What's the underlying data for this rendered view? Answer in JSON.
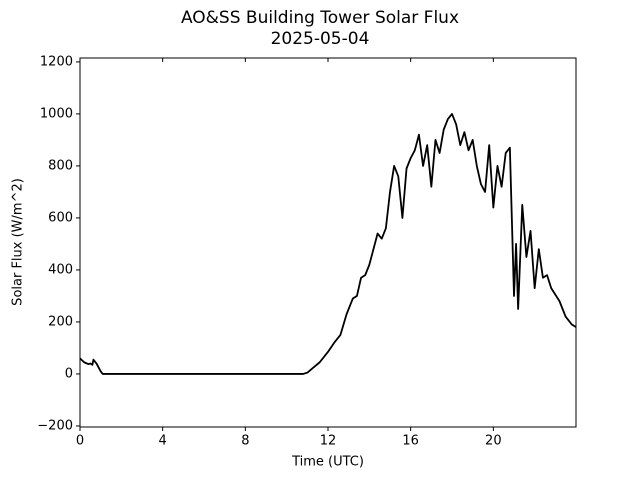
{
  "chart_data": {
    "type": "line",
    "title": "AO&SS Building Tower Solar Flux",
    "subtitle": "2025-05-04",
    "x_label": "Time (UTC)",
    "y_label": "Solar Flux (W/m^2)",
    "xlim": [
      0,
      24
    ],
    "xticks": [
      0,
      4,
      8,
      12,
      16,
      20
    ],
    "ylim": [
      -204,
      1215
    ],
    "yticks": [
      {
        "value": -200,
        "label": "−200"
      },
      0,
      200,
      400,
      600,
      800,
      1000,
      1200
    ],
    "series": [
      {
        "color": "#000000",
        "x": [
          0,
          0.2,
          0.4,
          0.5,
          0.6,
          0.65,
          0.8,
          1.0,
          1.1,
          10.8,
          11.0,
          11.3,
          11.6,
          12.0,
          12.3,
          12.6,
          12.9,
          13.2,
          13.4,
          13.6,
          13.8,
          14.0,
          14.2,
          14.4,
          14.6,
          14.8,
          15.0,
          15.2,
          15.4,
          15.6,
          15.8,
          16.0,
          16.2,
          16.4,
          16.6,
          16.8,
          17.0,
          17.2,
          17.4,
          17.6,
          17.8,
          18.0,
          18.2,
          18.4,
          18.6,
          18.8,
          19.0,
          19.2,
          19.4,
          19.6,
          19.8,
          20.0,
          20.2,
          20.4,
          20.6,
          20.8,
          21.0,
          21.1,
          21.2,
          21.4,
          21.6,
          21.8,
          22.0,
          22.2,
          22.4,
          22.6,
          22.8,
          23.2,
          23.5,
          23.8,
          24
        ],
        "values": [
          60,
          45,
          38,
          40,
          35,
          55,
          40,
          10,
          0,
          0,
          5,
          25,
          45,
          85,
          120,
          150,
          230,
          290,
          300,
          370,
          380,
          420,
          480,
          540,
          520,
          560,
          700,
          800,
          760,
          600,
          790,
          830,
          860,
          920,
          800,
          880,
          720,
          900,
          850,
          940,
          980,
          1000,
          960,
          880,
          930,
          860,
          900,
          800,
          730,
          700,
          880,
          640,
          800,
          720,
          850,
          870,
          300,
          500,
          250,
          650,
          450,
          550,
          330,
          480,
          370,
          380,
          330,
          280,
          220,
          190,
          180
        ]
      }
    ]
  }
}
